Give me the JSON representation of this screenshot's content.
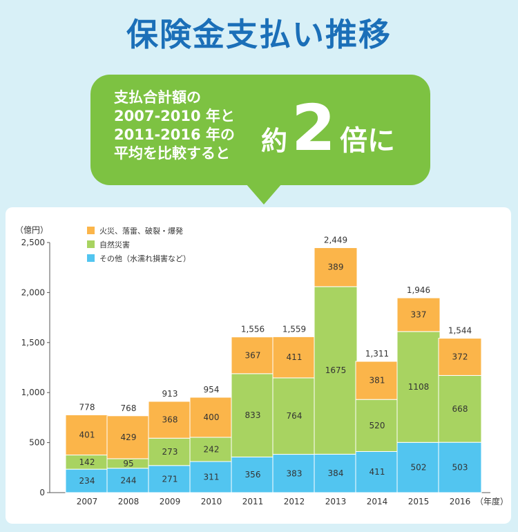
{
  "title": "保険金支払い推移",
  "callout": {
    "lines": [
      "支払合計額の",
      "2007-2010 年と",
      "2011-2016 年の",
      "平均を比較すると"
    ],
    "prefix": "約",
    "number": "2",
    "suffix": "倍に"
  },
  "colors": {
    "fire": "#fbb54a",
    "natural": "#a8d361",
    "other": "#52c5f0",
    "title": "#1b6fb8",
    "bubble": "#7dc242"
  },
  "chart_data": {
    "type": "bar",
    "stacked": true,
    "ylabel": "（億円）",
    "xlabel": "（年度）",
    "ylim": [
      0,
      2500
    ],
    "yticks": [
      "0",
      "500",
      "1,000",
      "1,500",
      "2,000",
      "2,500"
    ],
    "ytick_values": [
      0,
      500,
      1000,
      1500,
      2000,
      2500
    ],
    "categories": [
      "2007",
      "2008",
      "2009",
      "2010",
      "2011",
      "2012",
      "2013",
      "2014",
      "2015",
      "2016"
    ],
    "series": [
      {
        "name": "その他（水濡れ損害など）",
        "color": "#52c5f0",
        "values": [
          234,
          244,
          271,
          311,
          356,
          383,
          384,
          411,
          502,
          503
        ]
      },
      {
        "name": "自然災害",
        "color": "#a8d361",
        "values": [
          142,
          95,
          273,
          242,
          833,
          764,
          1675,
          520,
          1108,
          668
        ]
      },
      {
        "name": "火災、落雷、破裂・爆発",
        "color": "#fbb54a",
        "values": [
          401,
          429,
          368,
          400,
          367,
          411,
          389,
          381,
          337,
          372
        ]
      }
    ],
    "totals": [
      "778",
      "768",
      "913",
      "954",
      "1,556",
      "1,559",
      "2,449",
      "1,311",
      "1,946",
      "1,544"
    ],
    "legend": [
      {
        "label": "火災、落雷、破裂・爆発",
        "color": "#fbb54a"
      },
      {
        "label": "自然災害",
        "color": "#a8d361"
      },
      {
        "label": "その他（水濡れ損害など）",
        "color": "#52c5f0"
      }
    ],
    "legend_position": "top-left",
    "grid": false
  }
}
